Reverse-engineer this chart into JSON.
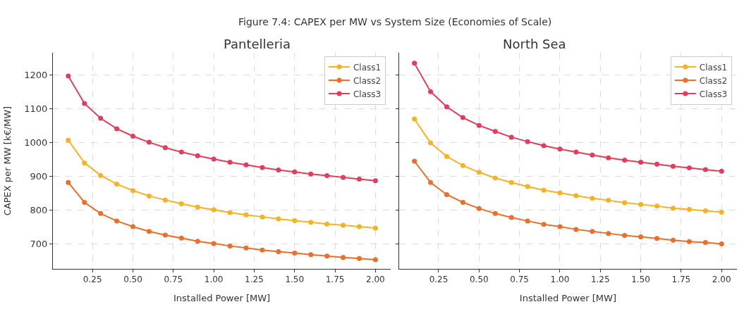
{
  "chart_data": [
    {
      "type": "line",
      "title": "Pantelleria",
      "annotations": [
        "Figure 7.4: CAPEX per MW vs System Size (Economies of Scale)"
      ],
      "xlabel": "Installed Power [MW]",
      "ylabel": "CAPEX per MW [k€/MW]",
      "x": [
        0.1,
        0.2,
        0.3,
        0.4,
        0.5,
        0.6,
        0.7,
        0.8,
        0.9,
        1.0,
        1.1,
        1.2,
        1.3,
        1.4,
        1.5,
        1.6,
        1.7,
        1.8,
        1.9,
        2.0
      ],
      "xlim": [
        0.005,
        2.095
      ],
      "xticks": [
        {
          "value": 0.25,
          "label": "0.25"
        },
        {
          "value": 0.5,
          "label": "0.50"
        },
        {
          "value": 0.75,
          "label": "0.75"
        },
        {
          "value": 1.0,
          "label": "1.00"
        },
        {
          "value": 1.25,
          "label": "1.25"
        },
        {
          "value": 1.5,
          "label": "1.50"
        },
        {
          "value": 1.75,
          "label": "1.75"
        },
        {
          "value": 2.0,
          "label": "2.00"
        }
      ],
      "ylim": [
        625,
        1265
      ],
      "yticks": [
        700,
        800,
        900,
        1000,
        1100,
        1200
      ],
      "grid": true,
      "legend": "top right",
      "marker": "circle",
      "line_style": "solid",
      "series": [
        {
          "name": "Class1",
          "color": "#f5b324",
          "values": [
            1006,
            939,
            902,
            876,
            857,
            841,
            829,
            818,
            808,
            800,
            792,
            785,
            779,
            773,
            768,
            763,
            758,
            754,
            750,
            746
          ]
        },
        {
          "name": "Class2",
          "color": "#e8702a",
          "values": [
            881,
            822,
            789,
            767,
            750,
            736,
            725,
            716,
            707,
            700,
            693,
            687,
            681,
            676,
            672,
            667,
            663,
            659,
            656,
            652
          ]
        },
        {
          "name": "Class3",
          "color": "#e23d5b",
          "values": [
            1196,
            1115,
            1071,
            1040,
            1018,
            1000,
            984,
            971,
            960,
            950,
            941,
            933,
            925,
            918,
            912,
            906,
            901,
            896,
            891,
            886
          ]
        }
      ]
    },
    {
      "type": "line",
      "title": "North Sea",
      "xlabel": "Installed Power [MW]",
      "x": [
        0.1,
        0.2,
        0.3,
        0.4,
        0.5,
        0.6,
        0.7,
        0.8,
        0.9,
        1.0,
        1.1,
        1.2,
        1.3,
        1.4,
        1.5,
        1.6,
        1.7,
        1.8,
        1.9,
        2.0
      ],
      "xlim": [
        0.005,
        2.095
      ],
      "xticks": [
        {
          "value": 0.25,
          "label": "0.25"
        },
        {
          "value": 0.5,
          "label": "0.50"
        },
        {
          "value": 0.75,
          "label": "0.75"
        },
        {
          "value": 1.0,
          "label": "1.00"
        },
        {
          "value": 1.25,
          "label": "1.25"
        },
        {
          "value": 1.5,
          "label": "1.50"
        },
        {
          "value": 1.75,
          "label": "1.75"
        },
        {
          "value": 2.0,
          "label": "2.00"
        }
      ],
      "ylim": [
        625,
        1265
      ],
      "yticks": [
        700,
        800,
        900,
        1000,
        1100,
        1200
      ],
      "tick_labels": "x",
      "grid": true,
      "legend": "top right",
      "marker": "circle",
      "line_style": "solid",
      "series": [
        {
          "name": "Class1",
          "color": "#f5b324",
          "values": [
            1069,
            998,
            958,
            931,
            911,
            894,
            881,
            869,
            858,
            850,
            842,
            834,
            828,
            821,
            816,
            811,
            805,
            801,
            797,
            793
          ]
        },
        {
          "name": "Class2",
          "color": "#e8702a",
          "values": [
            944,
            881,
            845,
            822,
            804,
            789,
            777,
            767,
            757,
            750,
            742,
            736,
            730,
            724,
            720,
            715,
            710,
            706,
            703,
            699
          ]
        },
        {
          "name": "Class3",
          "color": "#e23d5b",
          "values": [
            1234,
            1150,
            1105,
            1073,
            1050,
            1032,
            1015,
            1002,
            990,
            980,
            971,
            962,
            954,
            947,
            941,
            935,
            929,
            924,
            919,
            914
          ]
        }
      ]
    }
  ]
}
